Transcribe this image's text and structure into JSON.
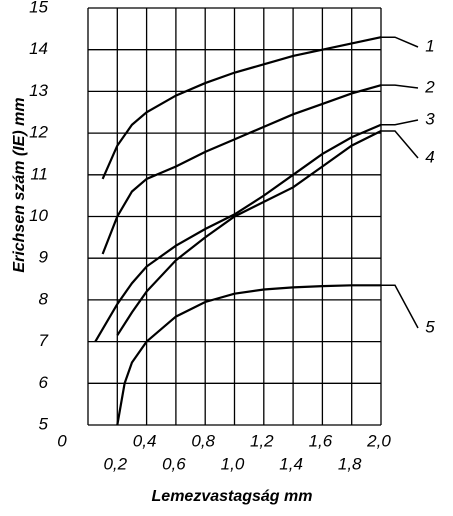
{
  "chart_data": {
    "type": "line",
    "y_label": "Erichsen szám (IE) mm",
    "x_label": "Lemezvastagság mm",
    "xlim": [
      0,
      2.0
    ],
    "ylim": [
      5,
      15
    ],
    "xticks": [
      0,
      {
        "value": 0.2,
        "label": "0,2"
      },
      {
        "value": 0.4,
        "label": "0,4"
      },
      {
        "value": 0.6,
        "label": "0,6"
      },
      {
        "value": 0.8,
        "label": "0,8"
      },
      {
        "value": 1.0,
        "label": "1,0"
      },
      {
        "value": 1.2,
        "label": "1,2"
      },
      {
        "value": 1.4,
        "label": "1,4"
      },
      {
        "value": 1.6,
        "label": "1,6"
      },
      {
        "value": 1.8,
        "label": "1,8"
      },
      {
        "value": 2.0,
        "label": "2,0"
      }
    ],
    "yticks": [
      5,
      6,
      7,
      8,
      9,
      10,
      11,
      12,
      13,
      14,
      15
    ],
    "grid": true,
    "series": [
      {
        "name": "1",
        "color": "#000000",
        "x": [
          0.1,
          0.2,
          0.3,
          0.4,
          0.6,
          0.8,
          1.0,
          1.2,
          1.4,
          1.6,
          1.8,
          2.0
        ],
        "values": [
          10.9,
          11.7,
          12.2,
          12.5,
          12.9,
          13.2,
          13.45,
          13.65,
          13.85,
          14.0,
          14.15,
          14.3
        ]
      },
      {
        "name": "2",
        "color": "#000000",
        "x": [
          0.1,
          0.2,
          0.3,
          0.4,
          0.6,
          0.8,
          1.0,
          1.2,
          1.4,
          1.6,
          1.8,
          2.0
        ],
        "values": [
          9.1,
          10.0,
          10.6,
          10.9,
          11.2,
          11.55,
          11.85,
          12.15,
          12.45,
          12.7,
          12.95,
          13.15
        ]
      },
      {
        "name": "3",
        "color": "#000000",
        "x": [
          0.05,
          0.2,
          0.3,
          0.4,
          0.6,
          0.8,
          1.0,
          1.2,
          1.4,
          1.6,
          1.8,
          2.0
        ],
        "values": [
          7.0,
          7.9,
          8.4,
          8.8,
          9.3,
          9.7,
          10.05,
          10.5,
          11.0,
          11.5,
          11.9,
          12.2
        ]
      },
      {
        "name": "4",
        "color": "#000000",
        "x": [
          0.2,
          0.3,
          0.4,
          0.6,
          0.8,
          1.0,
          1.2,
          1.4,
          1.6,
          1.8,
          2.0
        ],
        "values": [
          7.15,
          7.7,
          8.2,
          8.95,
          9.5,
          10.0,
          10.35,
          10.7,
          11.2,
          11.7,
          12.05
        ]
      },
      {
        "name": "5",
        "color": "#000000",
        "x": [
          0.2,
          0.25,
          0.3,
          0.4,
          0.6,
          0.8,
          1.0,
          1.2,
          1.4,
          1.6,
          1.8,
          2.0
        ],
        "values": [
          5.0,
          6.0,
          6.5,
          7.0,
          7.6,
          7.95,
          8.15,
          8.25,
          8.3,
          8.33,
          8.35,
          8.35
        ]
      }
    ]
  }
}
